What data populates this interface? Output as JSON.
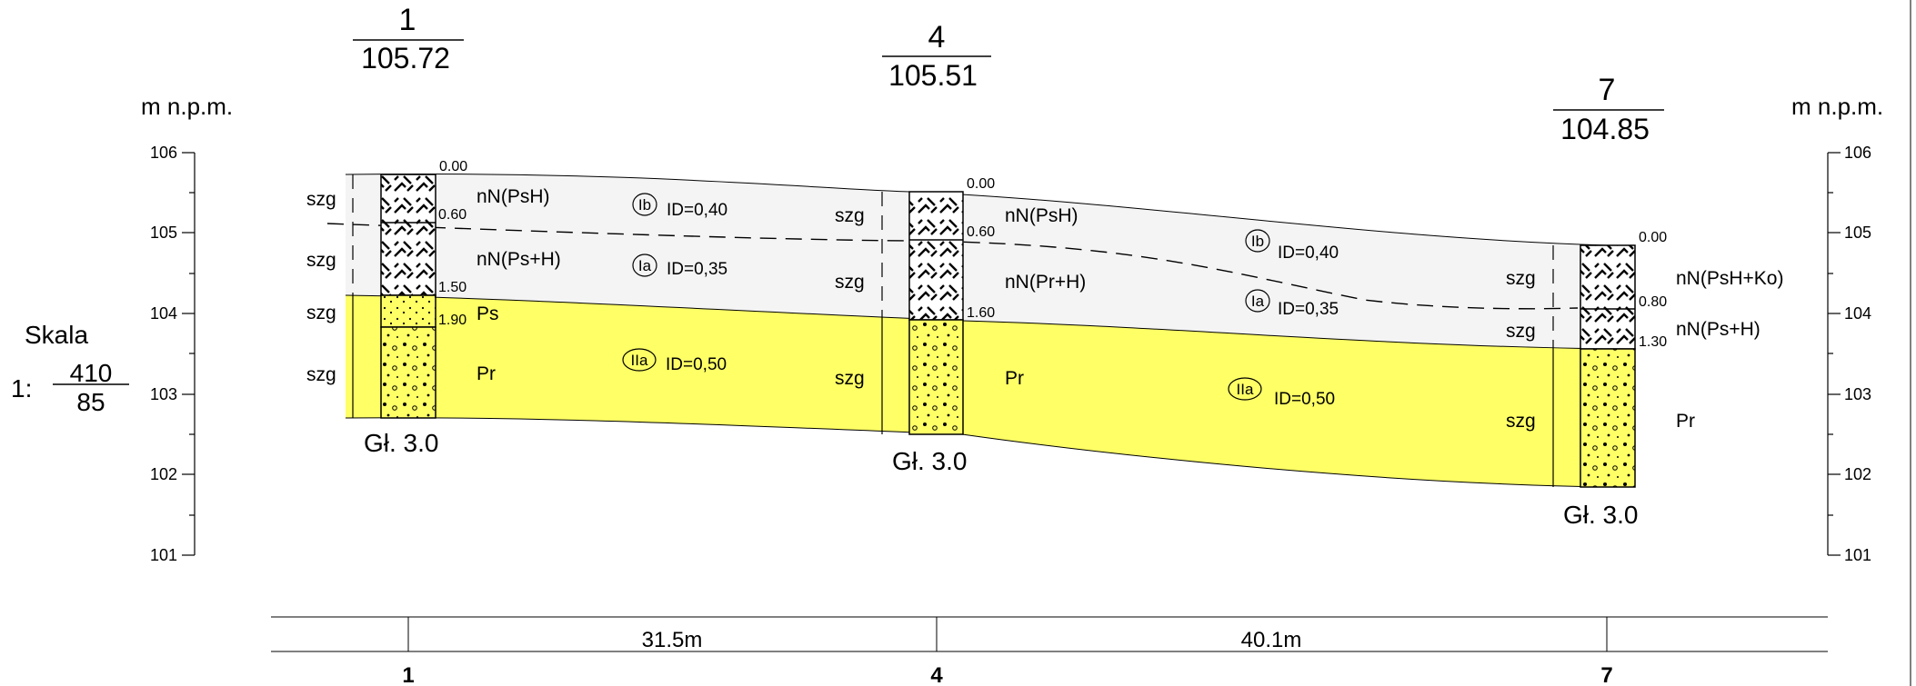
{
  "elev_unit": "m n.p.m.",
  "scale": {
    "label": "Skala",
    "prefix": "1:",
    "num": "410",
    "den": "85"
  },
  "elev_ticks": [
    "106",
    "105",
    "104",
    "103",
    "102",
    "101"
  ],
  "boreholes": [
    {
      "id": "1",
      "elev": "105.72",
      "depth_label": "Gł. 3.0",
      "depths": [
        "0.00",
        "0.60",
        "1.50",
        "1.90"
      ],
      "soils": [
        "nN(PsH)",
        "nN(Ps+H)",
        "Ps",
        "Pr"
      ],
      "wet": [
        "szg",
        "szg",
        "szg",
        "szg"
      ],
      "ids": [
        {
          "symbol": "Ib",
          "value": "ID=0,40"
        },
        {
          "symbol": "Ia",
          "value": "ID=0,35"
        },
        {
          "symbol": "IIa",
          "value": "ID=0,50"
        }
      ]
    },
    {
      "id": "4",
      "elev": "105.51",
      "depth_label": "Gł. 3.0",
      "depths": [
        "0.00",
        "0.60",
        "1.60"
      ],
      "soils": [
        "nN(PsH)",
        "nN(Pr+H)",
        "Pr"
      ],
      "wet": [
        "szg",
        "szg",
        "szg"
      ],
      "ids": [
        {
          "symbol": "Ib",
          "value": "ID=0,40"
        },
        {
          "symbol": "Ia",
          "value": "ID=0,35"
        },
        {
          "symbol": "IIa",
          "value": "ID=0,50"
        }
      ]
    },
    {
      "id": "7",
      "elev": "104.85",
      "depth_label": "Gł. 3.0",
      "depths": [
        "0.00",
        "0.80",
        "1.30"
      ],
      "soils": [
        "nN(PsH+Ko)",
        "nN(Ps+H)",
        "Pr"
      ],
      "wet": [
        "szg",
        "szg",
        "szg"
      ]
    }
  ],
  "distances": [
    "31.5m",
    "40.1m"
  ],
  "colors": {
    "fill_upper": "#f4f4f4",
    "fill_lower": "#ffff66",
    "line": "#000000"
  }
}
